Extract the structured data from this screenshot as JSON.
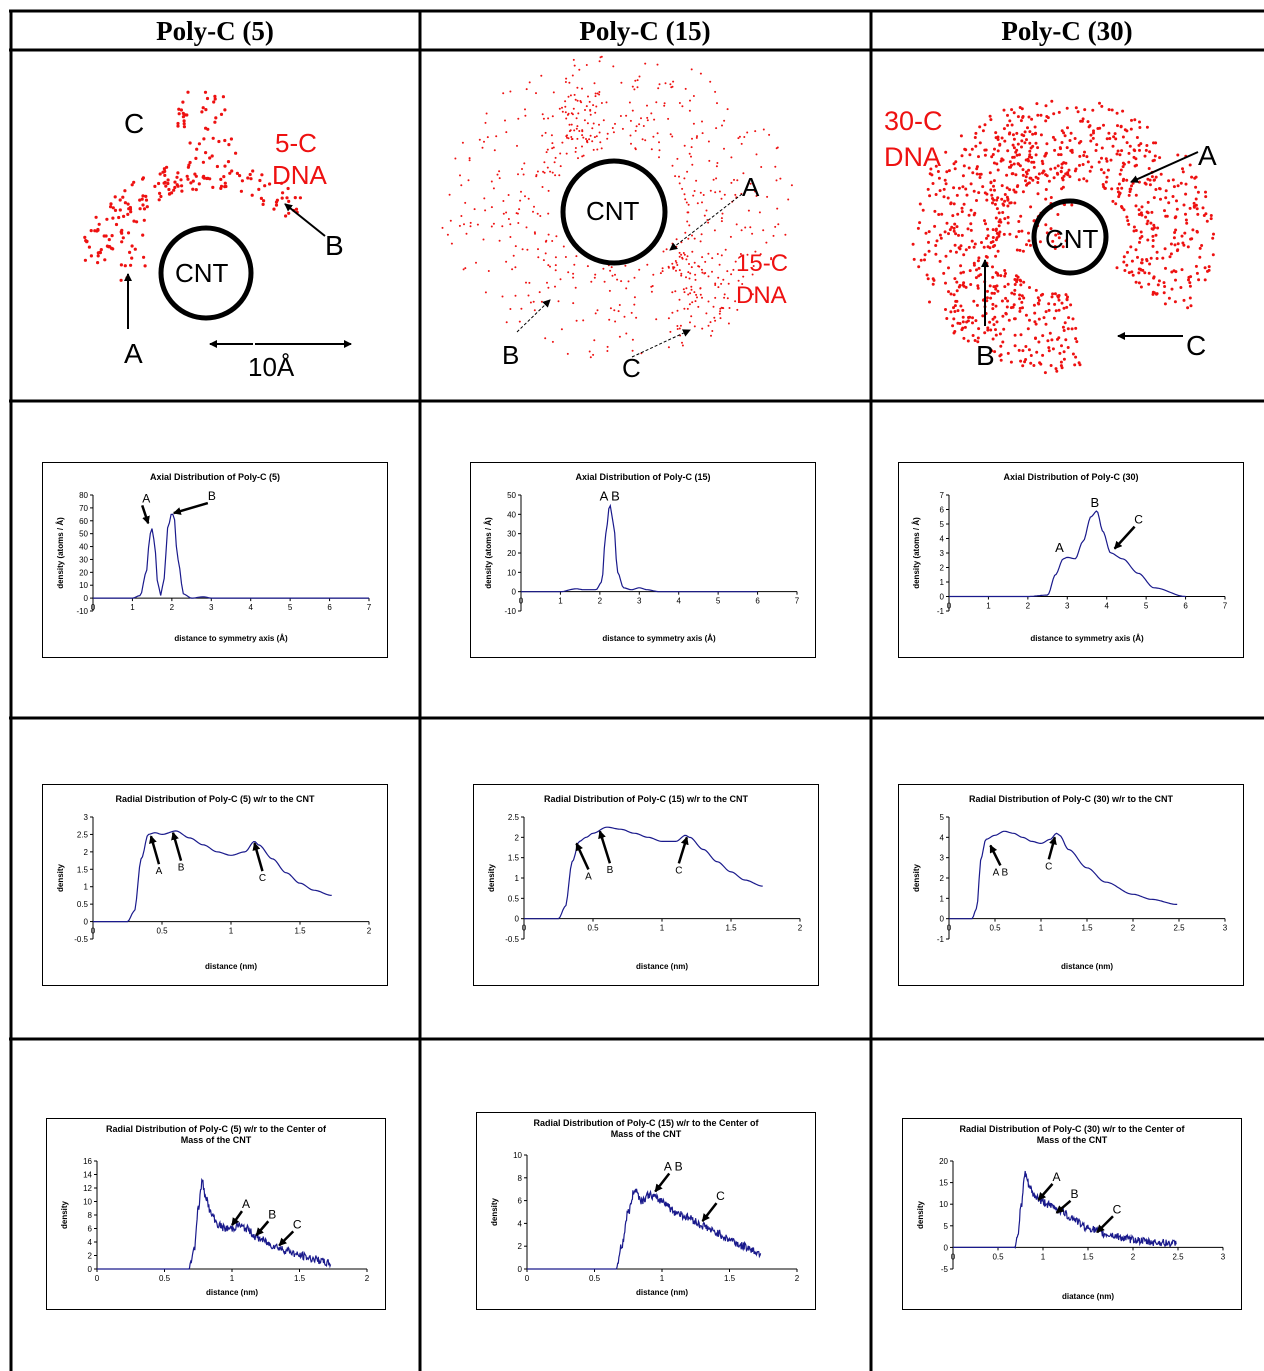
{
  "columns": [
    "Poly-C (5)",
    "Poly-C (15)",
    "Poly-C (30)"
  ],
  "snapshots": [
    {
      "cnt": "CNT",
      "dna_line1": "5-C",
      "dna_line2": "DNA",
      "labels": [
        "A",
        "B",
        "C"
      ],
      "scale": "10Å"
    },
    {
      "cnt": "CNT",
      "dna_line1": "15-C",
      "dna_line2": "DNA",
      "labels": [
        "A",
        "B",
        "C"
      ]
    },
    {
      "cnt": "CNT",
      "dna_line1": "30-C",
      "dna_line2": "DNA",
      "labels": [
        "A",
        "B",
        "C"
      ]
    }
  ],
  "colors": {
    "line": "#1a1a8c",
    "dna": "#ee1111",
    "border": "#000000"
  },
  "chart_data": [
    {
      "type": "line",
      "row": "axial",
      "column": 0,
      "title": "Axial Distribution of Poly-C (5)",
      "xlabel": "distance to symmetry axis (Å)",
      "ylabel": "density (atoms / Å)",
      "xlim": [
        0,
        7
      ],
      "ylim": [
        -10,
        80
      ],
      "xticks": [
        0,
        1,
        2,
        3,
        4,
        5,
        6,
        7
      ],
      "yticks": [
        -10,
        0,
        10,
        20,
        30,
        40,
        50,
        60,
        70,
        80
      ],
      "x": [
        0,
        1,
        1.2,
        1.35,
        1.45,
        1.5,
        1.55,
        1.65,
        1.72,
        1.8,
        1.9,
        2.0,
        2.05,
        2.15,
        2.3,
        2.5,
        2.8,
        3.0,
        7
      ],
      "y": [
        0,
        0,
        2,
        20,
        50,
        54,
        45,
        10,
        2,
        15,
        55,
        66,
        64,
        30,
        3,
        0,
        1,
        0,
        0
      ],
      "annotations": [
        "A",
        "B"
      ]
    },
    {
      "type": "line",
      "row": "axial",
      "column": 1,
      "title": "Axial Distribution of Poly-C (15)",
      "xlabel": "distance to symmetry axis (Å)",
      "ylabel": "density (atoms / Å)",
      "xlim": [
        0,
        7
      ],
      "ylim": [
        -10,
        50
      ],
      "xticks": [
        0,
        1,
        2,
        3,
        4,
        5,
        6,
        7
      ],
      "yticks": [
        -10,
        0,
        10,
        20,
        30,
        40,
        50
      ],
      "x": [
        0,
        1,
        1.4,
        1.6,
        1.9,
        2.05,
        2.15,
        2.25,
        2.35,
        2.45,
        2.6,
        2.8,
        3.0,
        3.2,
        3.5,
        6
      ],
      "y": [
        0,
        0,
        1.5,
        1,
        1,
        5,
        30,
        45,
        35,
        10,
        2,
        1,
        2,
        1,
        0,
        0
      ],
      "annotations": [
        "A B"
      ]
    },
    {
      "type": "line",
      "row": "axial",
      "column": 2,
      "title": "Axial Distribution of Poly-C (30)",
      "xlabel": "distance to symmetry axis (Å)",
      "ylabel": "density (atoms / Å)",
      "xlim": [
        0,
        7
      ],
      "ylim": [
        -1,
        7
      ],
      "xticks": [
        0,
        1,
        2,
        3,
        4,
        5,
        6,
        7
      ],
      "yticks": [
        -1,
        0,
        1,
        2,
        3,
        4,
        5,
        6,
        7
      ],
      "x": [
        0,
        2,
        2.5,
        2.7,
        2.9,
        3.0,
        3.2,
        3.4,
        3.6,
        3.75,
        3.9,
        4.1,
        4.4,
        4.8,
        5.2,
        6
      ],
      "y": [
        0,
        0,
        0.1,
        1.5,
        2.6,
        2.7,
        2.6,
        3.8,
        5.5,
        5.9,
        4.5,
        3,
        2.6,
        1.6,
        0.6,
        0
      ],
      "annotations": [
        "A",
        "B",
        "C"
      ]
    },
    {
      "type": "line",
      "row": "radial",
      "column": 0,
      "title": "Radial Distribution of Poly-C (5) w/r to the CNT",
      "xlabel": "distance (nm)",
      "ylabel": "density",
      "xlim": [
        0,
        2
      ],
      "ylim": [
        -0.5,
        3
      ],
      "xticks": [
        0,
        0.5,
        1,
        1.5,
        2
      ],
      "yticks": [
        -0.5,
        0,
        0.5,
        1,
        1.5,
        2,
        2.5,
        3
      ],
      "x": [
        0,
        0.25,
        0.3,
        0.35,
        0.4,
        0.45,
        0.5,
        0.6,
        0.7,
        0.8,
        0.9,
        1.0,
        1.1,
        1.17,
        1.2,
        1.3,
        1.4,
        1.5,
        1.6,
        1.73
      ],
      "y": [
        0,
        0,
        0.3,
        1.8,
        2.5,
        2.55,
        2.5,
        2.6,
        2.4,
        2.2,
        2.0,
        1.9,
        2.0,
        2.3,
        2.2,
        1.8,
        1.4,
        1.1,
        0.9,
        0.75
      ],
      "annotations": [
        "A",
        "B",
        "C"
      ]
    },
    {
      "type": "line",
      "row": "radial",
      "column": 1,
      "title": "Radial Distribution of Poly-C (15) w/r to the CNT",
      "xlabel": "distance (nm)",
      "ylabel": "density",
      "xlim": [
        0,
        2
      ],
      "ylim": [
        -0.5,
        2.5
      ],
      "xticks": [
        0,
        0.5,
        1,
        1.5,
        2
      ],
      "yticks": [
        -0.5,
        0,
        0.5,
        1,
        1.5,
        2,
        2.5
      ],
      "x": [
        0,
        0.25,
        0.3,
        0.35,
        0.4,
        0.45,
        0.5,
        0.6,
        0.7,
        0.8,
        0.9,
        1.0,
        1.1,
        1.17,
        1.2,
        1.3,
        1.4,
        1.5,
        1.6,
        1.73
      ],
      "y": [
        0,
        0,
        0.3,
        1.4,
        1.9,
        2.0,
        2.1,
        2.25,
        2.2,
        2.1,
        2.0,
        1.9,
        1.9,
        2.05,
        2.0,
        1.7,
        1.4,
        1.15,
        0.95,
        0.8
      ],
      "annotations": [
        "A",
        "B",
        "C"
      ]
    },
    {
      "type": "line",
      "row": "radial",
      "column": 2,
      "title": "Radial Distribution of Poly-C (30) w/r to the CNT",
      "xlabel": "distance (nm)",
      "ylabel": "density",
      "xlim": [
        0,
        3
      ],
      "ylim": [
        -1,
        5
      ],
      "xticks": [
        0,
        0.5,
        1,
        1.5,
        2,
        2.5,
        3
      ],
      "yticks": [
        -1,
        0,
        1,
        2,
        3,
        4,
        5
      ],
      "x": [
        0,
        0.25,
        0.3,
        0.35,
        0.4,
        0.5,
        0.6,
        0.7,
        0.8,
        0.9,
        1.0,
        1.1,
        1.17,
        1.2,
        1.3,
        1.5,
        1.7,
        2.0,
        2.2,
        2.48
      ],
      "y": [
        0,
        0,
        0.5,
        3.0,
        3.9,
        4.1,
        4.3,
        4.2,
        4.0,
        3.8,
        3.7,
        3.9,
        4.2,
        4.1,
        3.4,
        2.5,
        1.8,
        1.2,
        0.95,
        0.7
      ],
      "annotations": [
        "A B",
        "C"
      ]
    },
    {
      "type": "line",
      "row": "com",
      "column": 0,
      "title": "Radial Distribution of Poly-C (5) w/r to the Center of Mass of the CNT",
      "xlabel": "distance (nm)",
      "ylabel": "density",
      "xlim": [
        0,
        2
      ],
      "ylim": [
        0,
        16
      ],
      "xticks": [
        0,
        0.5,
        1,
        1.5,
        2
      ],
      "yticks": [
        0,
        2,
        4,
        6,
        8,
        10,
        12,
        14,
        16
      ],
      "x": [
        0,
        0.68,
        0.72,
        0.75,
        0.78,
        0.8,
        0.85,
        0.9,
        0.95,
        1.0,
        1.05,
        1.1,
        1.2,
        1.3,
        1.4,
        1.5,
        1.6,
        1.73
      ],
      "y": [
        0,
        0,
        3,
        9,
        13,
        11,
        8,
        6.5,
        6,
        6,
        6.5,
        6,
        4.5,
        3.5,
        2.8,
        2,
        1.5,
        0.8
      ],
      "noisy": true,
      "annotations": [
        "A",
        "B",
        "C"
      ]
    },
    {
      "type": "line",
      "row": "com",
      "column": 1,
      "title": "Radial Distribution of Poly-C (15) w/r to the Center of Mass of the CNT",
      "xlabel": "distance (nm)",
      "ylabel": "density",
      "xlim": [
        0,
        2
      ],
      "ylim": [
        0,
        10
      ],
      "xticks": [
        0,
        0.5,
        1,
        1.5,
        2
      ],
      "yticks": [
        0,
        2,
        4,
        6,
        8,
        10
      ],
      "x": [
        0,
        0.66,
        0.7,
        0.75,
        0.8,
        0.85,
        0.9,
        1.0,
        1.1,
        1.2,
        1.3,
        1.4,
        1.5,
        1.6,
        1.73
      ],
      "y": [
        0,
        0,
        2,
        5,
        7,
        6,
        6.5,
        6,
        5,
        4.5,
        3.8,
        3.2,
        2.6,
        2,
        1.4
      ],
      "noisy": true,
      "annotations": [
        "A B",
        "C"
      ]
    },
    {
      "type": "line",
      "row": "com",
      "column": 2,
      "title": "Radial Distribution of Poly-C (30) w/r to the Center of Mass of the CNT",
      "xlabel": "diatance (nm)",
      "ylabel": "density",
      "xlim": [
        0,
        3
      ],
      "ylim": [
        -5,
        20
      ],
      "xticks": [
        0,
        0.5,
        1,
        1.5,
        2,
        2.5,
        3
      ],
      "yticks": [
        -5,
        0,
        5,
        10,
        15,
        20
      ],
      "x": [
        0,
        0.68,
        0.72,
        0.76,
        0.8,
        0.85,
        0.9,
        1.0,
        1.1,
        1.2,
        1.3,
        1.5,
        1.7,
        2.0,
        2.2,
        2.48
      ],
      "y": [
        0,
        0,
        3,
        10,
        17,
        14,
        12,
        10.5,
        9.5,
        8.5,
        7,
        4.5,
        3,
        1.8,
        1.2,
        0.9
      ],
      "noisy": true,
      "annotations": [
        "A",
        "B",
        "C"
      ]
    }
  ]
}
